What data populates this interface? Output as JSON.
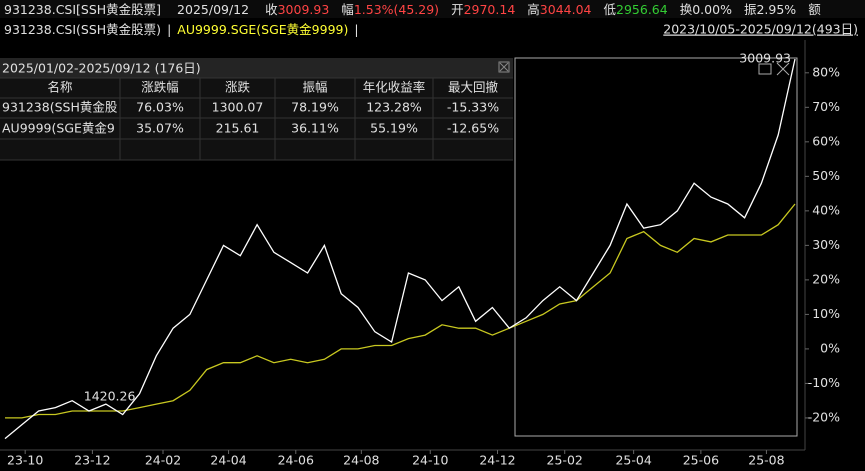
{
  "header": {
    "name": "931238.CSI[SSH黄金股票]",
    "date": "2025/09/12",
    "quote": [
      {
        "label": "收",
        "value": "3009.93",
        "color": "#ff4444"
      },
      {
        "label": "幅",
        "value": "1.53%(45.29)",
        "color": "#ff4444"
      },
      {
        "label": "开",
        "value": "2970.14",
        "color": "#ff4444"
      },
      {
        "label": "高",
        "value": "3044.04",
        "color": "#ff4444"
      },
      {
        "label": "低",
        "value": "2956.64",
        "color": "#33cc33"
      },
      {
        "label": "换",
        "value": "0.00%",
        "color": "#e0e0e0"
      },
      {
        "label": "振",
        "value": "2.95%",
        "color": "#e0e0e0"
      }
    ],
    "last_label": "额"
  },
  "legend_bar": {
    "separator": "|",
    "range": "2023/10/05-2025/09/12(493日)"
  },
  "table": {
    "title": "2025/01/02-2025/09/12 (176日)",
    "columns": [
      "名称",
      "涨跌幅",
      "涨跌",
      "振幅",
      "年化收益率",
      "最大回撤"
    ],
    "rows": [
      {
        "color": "#e0e0e0",
        "cells": [
          "931238(SSH黄金股",
          "76.03%",
          "1300.07",
          "78.19%",
          "123.28%",
          "-15.33%"
        ]
      },
      {
        "color": "#ffff33",
        "cells": [
          "AU9999(SGE黄金9",
          "35.07%",
          "215.61",
          "36.11%",
          "55.19%",
          "-12.65%"
        ]
      }
    ]
  },
  "chart_data": {
    "type": "line",
    "series": [
      {
        "name": "931238.CSI(SSH黄金股票)",
        "color": "#ffffff",
        "values": [
          -26,
          -22,
          -18,
          -17,
          -15,
          -18,
          -16,
          -19,
          -13,
          -2,
          6,
          10,
          20,
          30,
          27,
          36,
          28,
          25,
          22,
          30,
          16,
          12,
          5,
          2,
          22,
          20,
          14,
          18,
          8,
          12,
          6,
          9,
          14,
          18,
          14,
          22,
          30,
          42,
          35,
          36,
          40,
          48,
          44,
          42,
          38,
          48,
          62,
          84
        ]
      },
      {
        "name": "AU9999.SGE(SGE黄金9999)",
        "color": "#c8c820",
        "values": [
          -20,
          -20,
          -19,
          -19,
          -18,
          -18,
          -18,
          -18,
          -17,
          -16,
          -15,
          -12,
          -6,
          -4,
          -4,
          -2,
          -4,
          -3,
          -4,
          -3,
          0,
          0,
          1,
          1,
          3,
          4,
          7,
          6,
          6,
          4,
          6,
          8,
          10,
          13,
          14,
          18,
          22,
          32,
          34,
          30,
          28,
          32,
          31,
          33,
          33,
          33,
          36,
          42
        ]
      }
    ],
    "xlim": [
      0,
      47
    ],
    "xticks": [
      {
        "value": 1.2,
        "label": "23-10"
      },
      {
        "value": 5.2,
        "label": "23-12"
      },
      {
        "value": 9.4,
        "label": "24-02"
      },
      {
        "value": 13.3,
        "label": "24-04"
      },
      {
        "value": 17.3,
        "label": "24-06"
      },
      {
        "value": 21.2,
        "label": "24-08"
      },
      {
        "value": 25.3,
        "label": "24-10"
      },
      {
        "value": 29.3,
        "label": "24-12"
      },
      {
        "value": 33.3,
        "label": "25-02"
      },
      {
        "value": 37.4,
        "label": "25-04"
      },
      {
        "value": 41.4,
        "label": "25-06"
      },
      {
        "value": 45.3,
        "label": "25-08"
      }
    ],
    "ylim": [
      -29,
      84
    ],
    "yticks": [
      {
        "value": -20,
        "label": "-20%"
      },
      {
        "value": -10,
        "label": "-10%"
      },
      {
        "value": 0,
        "label": "0%"
      },
      {
        "value": 10,
        "label": "10%"
      },
      {
        "value": 20,
        "label": "20%"
      },
      {
        "value": 30,
        "label": "30%"
      },
      {
        "value": 40,
        "label": "40%"
      },
      {
        "value": 50,
        "label": "50%"
      },
      {
        "value": 60,
        "label": "60%"
      },
      {
        "value": 70,
        "label": "70%"
      },
      {
        "value": 80,
        "label": "80%"
      }
    ],
    "annotations": [
      {
        "text": "1420.26",
        "x": 8,
        "y": -13,
        "color": "#33cc33",
        "anchor": "end"
      },
      {
        "text": "3009.93",
        "x": 47,
        "y": 84,
        "color": "#ff4444",
        "anchor": "end"
      }
    ]
  }
}
